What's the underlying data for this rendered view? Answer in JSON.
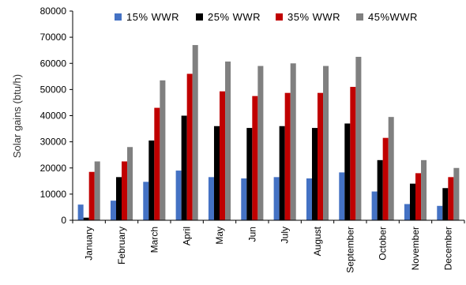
{
  "chart_data": {
    "type": "bar",
    "ylabel": "Solar gains (btu/h)",
    "ylim": [
      0,
      80000
    ],
    "yticks": [
      0,
      10000,
      20000,
      30000,
      40000,
      50000,
      60000,
      70000,
      80000
    ],
    "grid": false,
    "legend_position": "top",
    "categories": [
      "January",
      "February",
      "March",
      "April",
      "May",
      "Jun",
      "July",
      "August",
      "September",
      "October",
      "November",
      "December"
    ],
    "series": [
      {
        "name": "15% WWR",
        "color": "#4472C4",
        "values": [
          6000,
          7500,
          14700,
          19000,
          16500,
          16000,
          16500,
          16000,
          18300,
          11000,
          6200,
          5500
        ]
      },
      {
        "name": "25% WWR",
        "color": "#000000",
        "values": [
          1000,
          16500,
          30500,
          40000,
          36000,
          35300,
          36000,
          35300,
          37000,
          23000,
          14000,
          12300
        ]
      },
      {
        "name": "35% WWR",
        "color": "#C00000",
        "values": [
          18500,
          22500,
          43000,
          56000,
          49300,
          47500,
          48700,
          48700,
          51000,
          31500,
          18000,
          16500
        ]
      },
      {
        "name": "45%WWR",
        "color": "#808080",
        "values": [
          22500,
          28000,
          53500,
          67000,
          60700,
          59000,
          60000,
          59000,
          62500,
          39500,
          23000,
          20000
        ]
      }
    ]
  }
}
